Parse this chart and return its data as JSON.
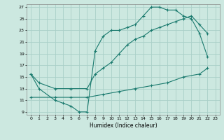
{
  "xlabel": "Humidex (Indice chaleur)",
  "bg_color": "#cce8e0",
  "grid_color": "#aacfc8",
  "line_color": "#1a7a6e",
  "xlim": [
    -0.5,
    23.5
  ],
  "ylim": [
    8.5,
    27.5
  ],
  "xticks": [
    0,
    1,
    2,
    3,
    4,
    5,
    6,
    7,
    8,
    9,
    10,
    11,
    12,
    13,
    14,
    15,
    16,
    17,
    18,
    19,
    20,
    21,
    22,
    23
  ],
  "yticks": [
    9,
    11,
    13,
    15,
    17,
    19,
    21,
    23,
    25,
    27
  ],
  "line1_x": [
    0,
    1,
    3,
    4,
    5,
    6,
    7,
    8,
    9,
    10,
    11,
    12,
    13,
    14,
    15,
    16,
    17,
    18,
    19,
    20,
    21,
    22
  ],
  "line1_y": [
    15.5,
    13,
    11,
    10.5,
    10,
    9,
    9,
    19.5,
    22,
    23,
    23,
    23.5,
    24,
    25.5,
    27,
    27,
    26.5,
    26.5,
    25.5,
    25,
    22.5,
    18.5
  ],
  "line2_x": [
    0,
    1,
    3,
    5,
    7,
    8,
    9,
    10,
    11,
    12,
    13,
    14,
    15,
    16,
    17,
    18,
    19,
    20,
    21,
    22
  ],
  "line2_y": [
    15.5,
    14,
    13,
    13,
    13,
    15.5,
    16.5,
    17.5,
    19,
    20.5,
    21.5,
    22,
    23,
    23.5,
    24,
    24.5,
    25,
    25.5,
    24,
    22.5
  ],
  "line3_x": [
    0,
    3,
    5,
    7,
    9,
    11,
    13,
    15,
    17,
    19,
    21,
    22
  ],
  "line3_y": [
    11.5,
    11.5,
    11.5,
    11.5,
    12,
    12.5,
    13,
    13.5,
    14,
    15,
    15.5,
    16.5
  ]
}
